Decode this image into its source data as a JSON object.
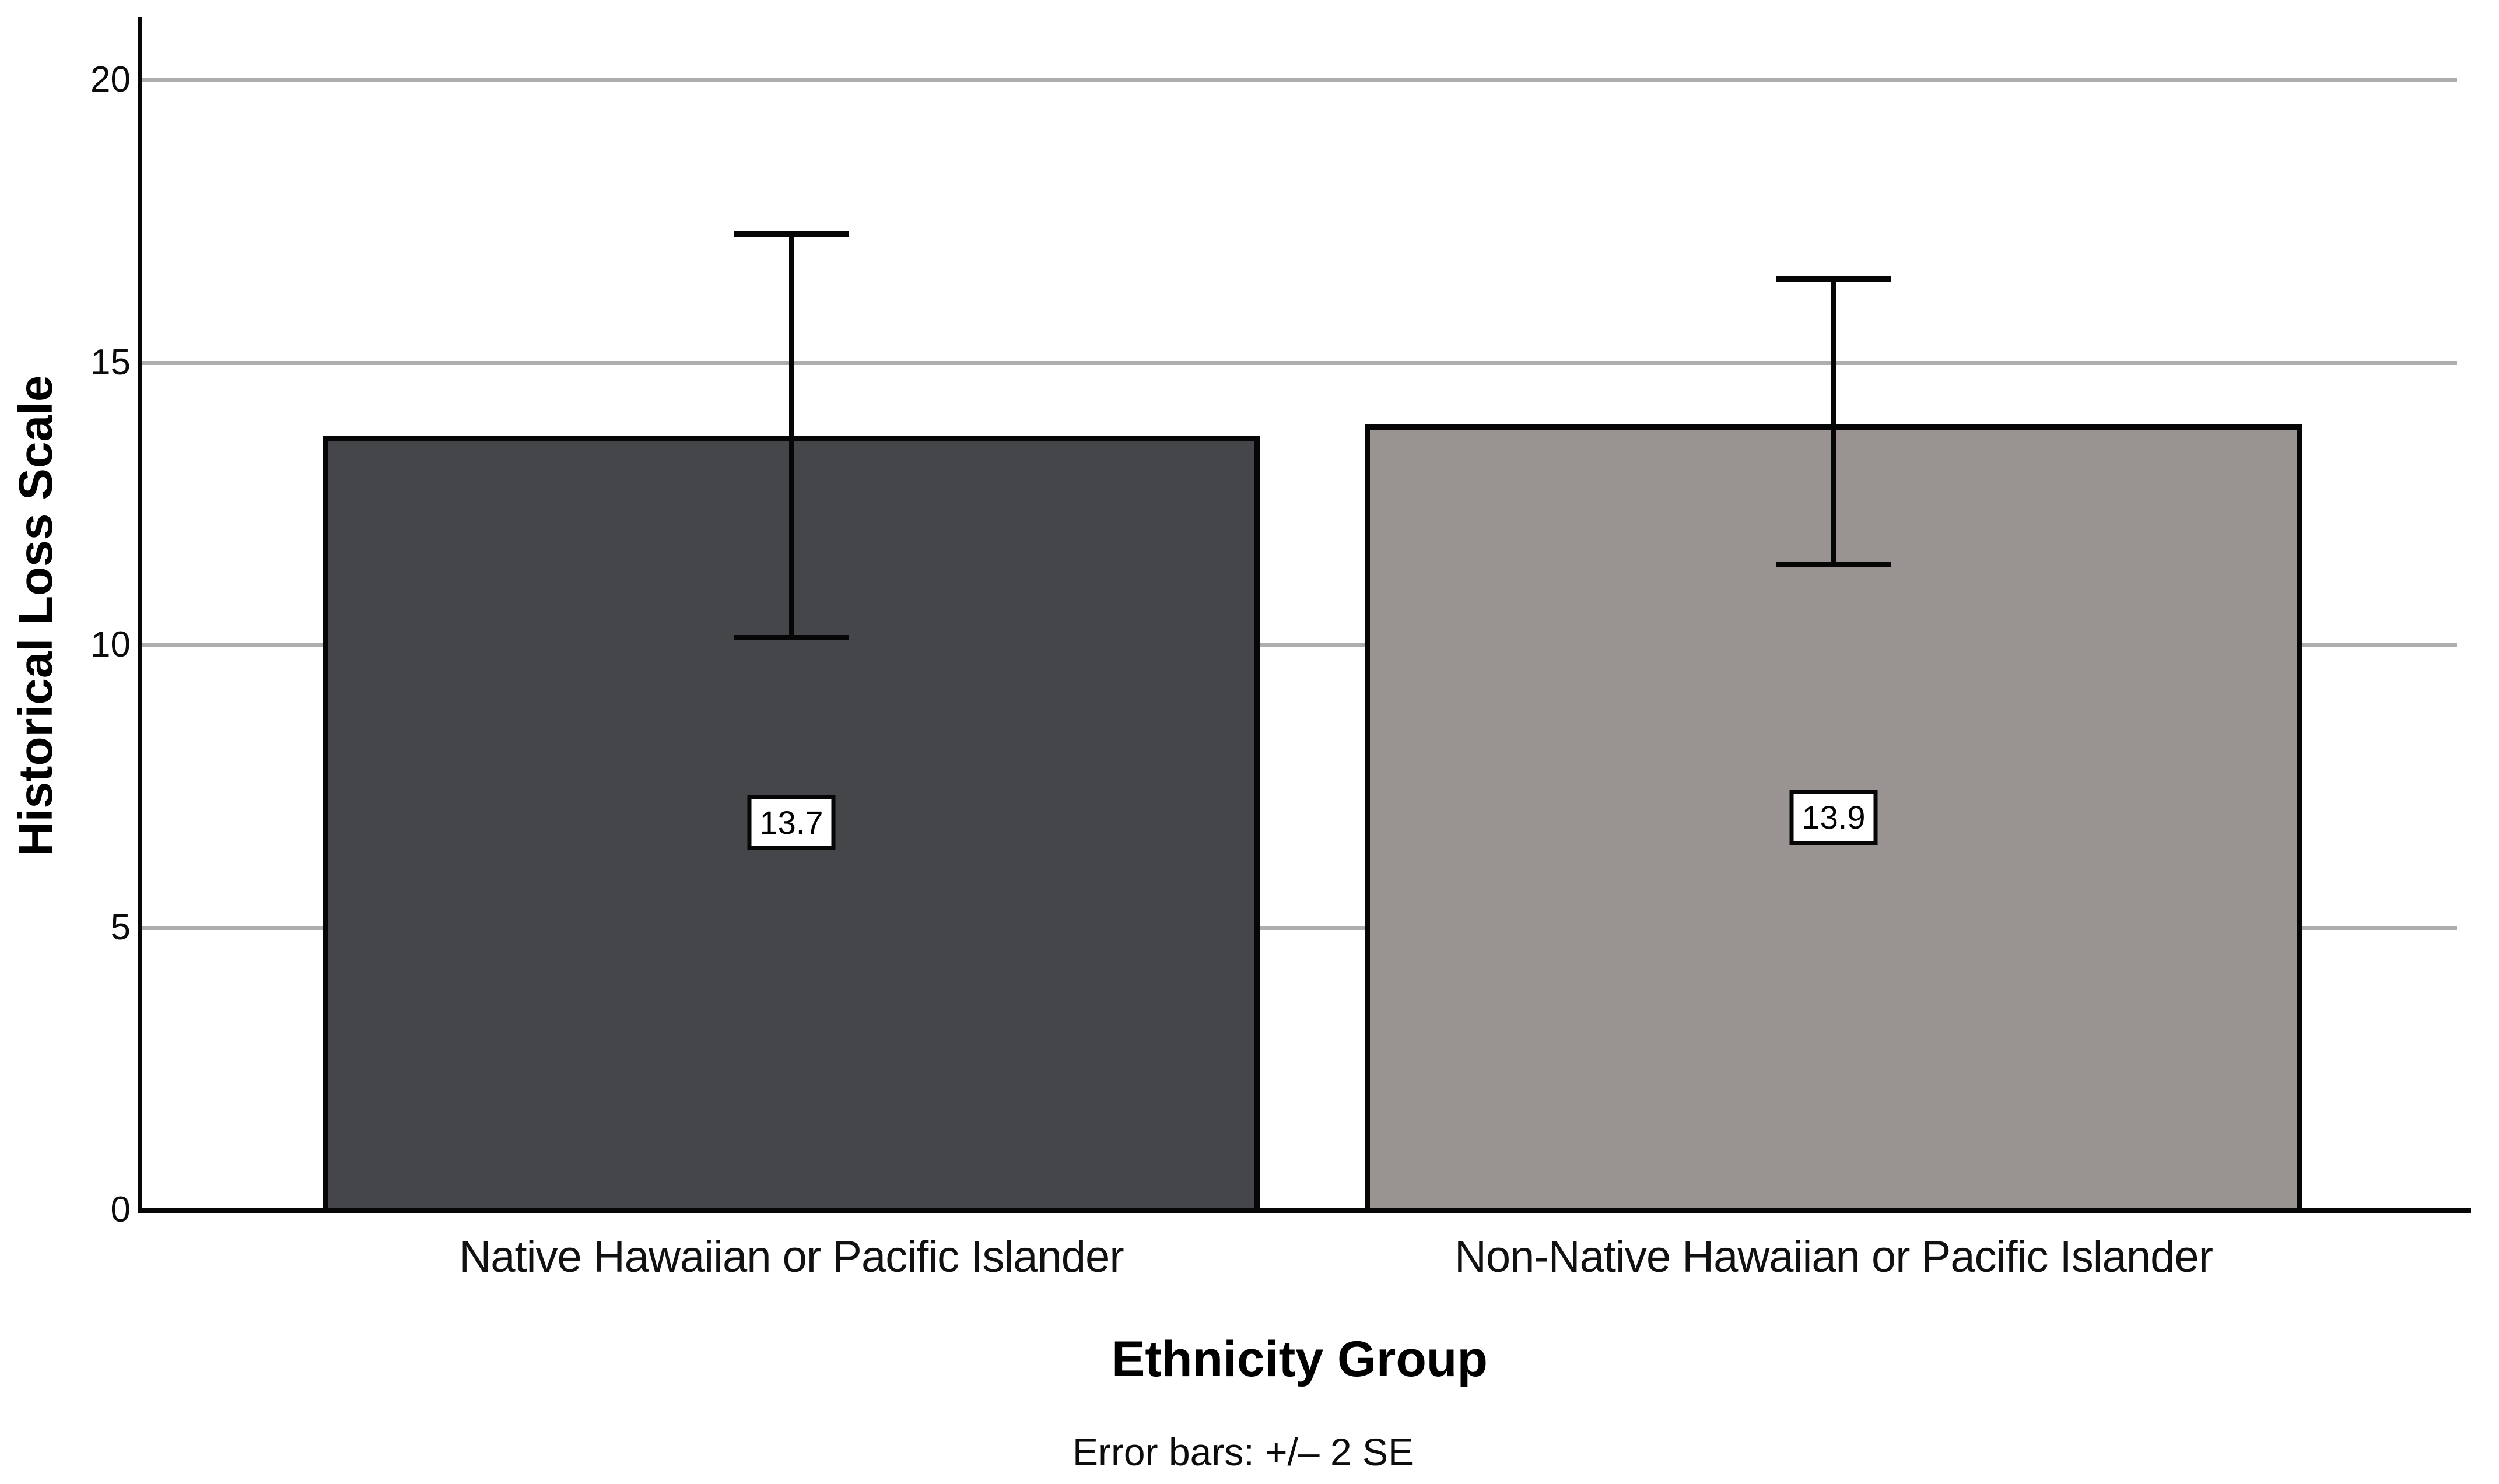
{
  "chart_data": {
    "type": "bar",
    "title": "",
    "categories": [
      "Native Hawaiian or Pacific Islander",
      "Non-Native Hawaiian or Pacific Islander"
    ],
    "values": [
      13.7,
      13.9
    ],
    "bar_labels": [
      "13.7",
      "13.9"
    ],
    "bar_colors": [
      "#45464a",
      "#999392"
    ],
    "error_bars": {
      "description": "Error bars: +/– 2 SE",
      "upper": [
        17.3,
        16.5
      ],
      "lower": [
        10.1,
        11.4
      ]
    },
    "xlabel": "Ethnicity Group",
    "ylabel": "Historical Loss Scale",
    "yticks": [
      0,
      5,
      10,
      15,
      20
    ],
    "ylim": [
      0,
      21.1
    ],
    "grid": true,
    "legend": false,
    "gridline_color": "#aeaeae",
    "axis_color": "#060606"
  }
}
